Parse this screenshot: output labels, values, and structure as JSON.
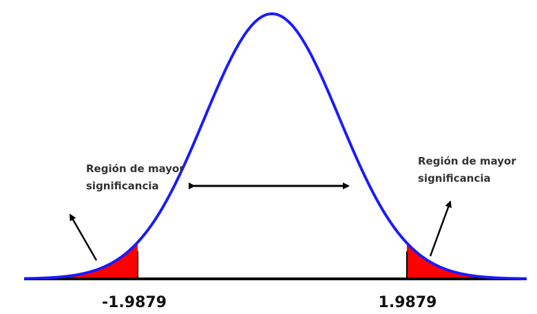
{
  "left_note": {
    "lines": [
      "Región de mayor",
      "significancia"
    ]
  },
  "right_note": {
    "lines": [
      "Región de mayor",
      "significancia"
    ]
  },
  "critical_values": {
    "left": "-1.9879",
    "right": "1.9879"
  }
}
